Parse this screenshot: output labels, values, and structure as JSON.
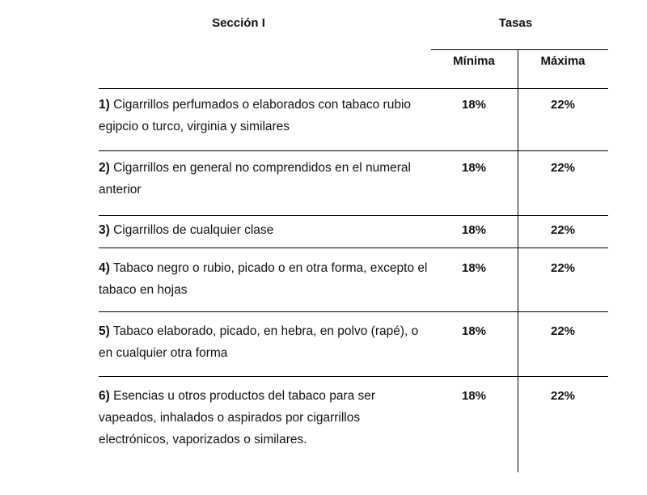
{
  "header": {
    "section": "Sección I",
    "rates": "Tasas",
    "min": "Mínima",
    "max": "Máxima"
  },
  "rows": [
    {
      "num": "1)",
      "text": " Cigarrillos perfumados o elaborados con tabaco rubio egipcio o turco, virginia y similares",
      "min": "18%",
      "max": "22%"
    },
    {
      "num": "2)",
      "text": " Cigarrillos en general no comprendidos en el numeral anterior",
      "min": "18%",
      "max": "22%"
    },
    {
      "num": "3)",
      "text": " Cigarrillos de cualquier clase",
      "min": "18%",
      "max": "22%"
    },
    {
      "num": "4)",
      "text": " Tabaco negro o rubio, picado o en otra forma, excepto el tabaco en hojas",
      "min": "18%",
      "max": "22%"
    },
    {
      "num": "5)",
      "text": " Tabaco elaborado, picado, en hebra, en polvo (rapé), o en cualquier otra forma",
      "min": "18%",
      "max": "22%"
    },
    {
      "num": "6)",
      "text": " Esencias u otros productos del tabaco para ser vapeados, inhalados o aspirados por cigarrillos electrónicos, vaporizados o similares.",
      "min": "18%",
      "max": "22%"
    }
  ]
}
